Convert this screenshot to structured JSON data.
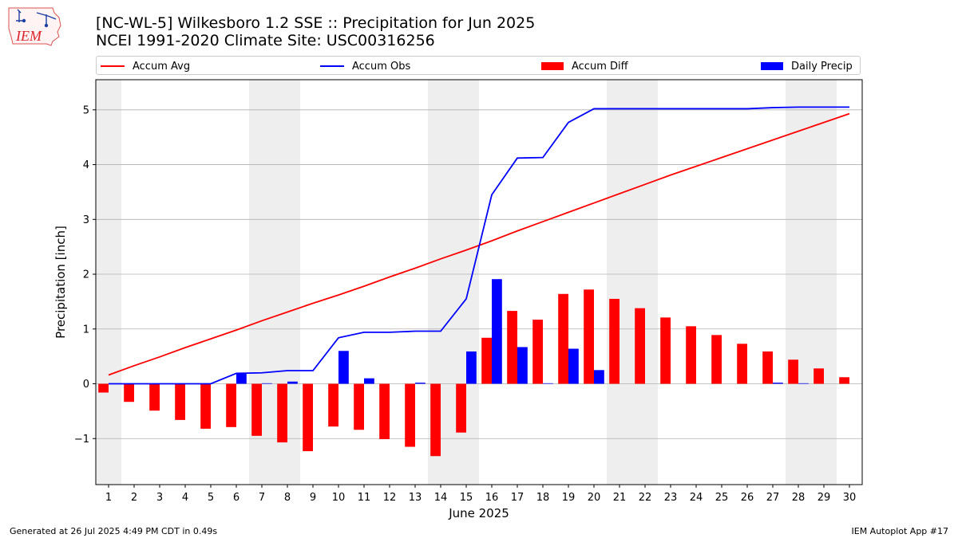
{
  "header": {
    "logo_text": "IEM",
    "title_line1": "[NC-WL-5] Wilkesboro 1.2 SSE :: Precipitation for Jun 2025",
    "title_line2": "NCEI 1991-2020 Climate Site: USC00316256"
  },
  "footer": {
    "left": "Generated at 26 Jul 2025 4:49 PM CDT in 0.49s",
    "right": "IEM Autoplot App #17"
  },
  "colors": {
    "accum_avg": "#ff0000",
    "accum_obs": "#0000ff",
    "accum_diff": "#ff0000",
    "daily_precip": "#0000ff",
    "weekend_shade": "#eeeeee",
    "grid": "#b0b0b0"
  },
  "chart_data": {
    "type": "bar",
    "xlabel": "June 2025",
    "ylabel": "Precipitation [inch]",
    "ylim": [
      -1.84,
      5.55
    ],
    "yticks": [
      -1,
      0,
      1,
      2,
      3,
      4,
      5
    ],
    "ytick_labels": [
      "−1",
      "0",
      "1",
      "2",
      "3",
      "4",
      "5"
    ],
    "grid": "horizontal",
    "legend_position": "top",
    "x": [
      1,
      2,
      3,
      4,
      5,
      6,
      7,
      8,
      9,
      10,
      11,
      12,
      13,
      14,
      15,
      16,
      17,
      18,
      19,
      20,
      21,
      22,
      23,
      24,
      25,
      26,
      27,
      28,
      29,
      30
    ],
    "x_tick_labels": [
      "1",
      "2",
      "3",
      "4",
      "5",
      "6",
      "7",
      "8",
      "9",
      "10",
      "11",
      "12",
      "13",
      "14",
      "15",
      "16",
      "17",
      "18",
      "19",
      "20",
      "21",
      "22",
      "23",
      "24",
      "25",
      "26",
      "27",
      "28",
      "29",
      "30"
    ],
    "weekend_spans": [
      [
        0.5,
        1.5
      ],
      [
        6.5,
        8.5
      ],
      [
        13.5,
        15.5
      ],
      [
        20.5,
        22.5
      ],
      [
        27.5,
        29.5
      ]
    ],
    "series": [
      {
        "name": "Accum Avg",
        "kind": "line",
        "color": "#ff0000",
        "values": [
          0.16,
          0.33,
          0.49,
          0.66,
          0.82,
          0.98,
          1.15,
          1.31,
          1.47,
          1.62,
          1.78,
          1.95,
          2.11,
          2.28,
          2.44,
          2.61,
          2.79,
          2.96,
          3.13,
          3.3,
          3.47,
          3.64,
          3.81,
          3.97,
          4.13,
          4.29,
          4.45,
          4.61,
          4.77,
          4.93
        ]
      },
      {
        "name": "Accum Obs",
        "kind": "line",
        "color": "#0000ff",
        "values": [
          0.0,
          0.0,
          0.0,
          0.0,
          0.0,
          0.19,
          0.2,
          0.24,
          0.24,
          0.84,
          0.94,
          0.94,
          0.96,
          0.96,
          1.55,
          3.45,
          4.12,
          4.13,
          4.77,
          5.02,
          5.02,
          5.02,
          5.02,
          5.02,
          5.02,
          5.02,
          5.04,
          5.05,
          5.05,
          5.05
        ]
      },
      {
        "name": "Accum Diff",
        "kind": "bar",
        "color": "#ff0000",
        "values": [
          -0.16,
          -0.33,
          -0.49,
          -0.66,
          -0.82,
          -0.79,
          -0.95,
          -1.07,
          -1.23,
          -0.78,
          -0.84,
          -1.01,
          -1.15,
          -1.32,
          -0.89,
          0.84,
          1.33,
          1.17,
          1.64,
          1.72,
          1.55,
          1.38,
          1.21,
          1.05,
          0.89,
          0.73,
          0.59,
          0.44,
          0.28,
          0.12
        ]
      },
      {
        "name": "Daily Precip",
        "kind": "bar",
        "color": "#0000ff",
        "values": [
          0,
          0,
          0,
          0,
          0,
          0.19,
          0.01,
          0.04,
          0,
          0.6,
          0.1,
          0,
          0.02,
          0,
          0.59,
          1.91,
          0.67,
          0.01,
          0.64,
          0.25,
          0,
          0,
          0,
          0,
          0,
          0,
          0.02,
          0.01,
          0,
          0
        ]
      }
    ]
  }
}
